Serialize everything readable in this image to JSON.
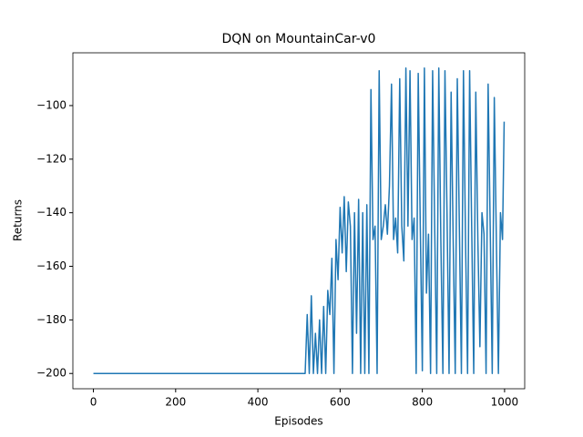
{
  "chart_data": {
    "type": "line",
    "title": "DQN on MountainCar-v0",
    "x_label": "Episodes",
    "y_label": "Returns",
    "xlim": [
      -49.95,
      1048.95
    ],
    "ylim": [
      -205.7,
      -80.3
    ],
    "xticks": [
      0,
      200,
      400,
      600,
      800,
      1000
    ],
    "yticks": [
      {
        "value": -200,
        "label": "−200"
      },
      {
        "value": -180,
        "label": "−180"
      },
      {
        "value": -160,
        "label": "−160"
      },
      {
        "value": -140,
        "label": "−140"
      },
      {
        "value": -120,
        "label": "−120"
      },
      {
        "value": -100,
        "label": "−100"
      }
    ],
    "series": [
      {
        "color": "#1f77b4",
        "x": [
          0,
          515,
          520,
          525,
          530,
          535,
          540,
          545,
          550,
          555,
          560,
          565,
          570,
          575,
          580,
          585,
          590,
          595,
          600,
          605,
          610,
          615,
          620,
          625,
          630,
          635,
          640,
          645,
          650,
          655,
          660,
          665,
          670,
          675,
          680,
          685,
          690,
          695,
          700,
          705,
          710,
          715,
          720,
          725,
          730,
          735,
          740,
          745,
          750,
          755,
          760,
          765,
          770,
          775,
          780,
          785,
          790,
          795,
          800,
          805,
          810,
          815,
          820,
          825,
          830,
          835,
          840,
          845,
          850,
          855,
          860,
          865,
          870,
          875,
          880,
          885,
          890,
          895,
          900,
          905,
          910,
          915,
          920,
          925,
          930,
          935,
          940,
          945,
          950,
          955,
          960,
          965,
          970,
          975,
          980,
          985,
          990,
          995,
          999
        ],
        "values": [
          -200,
          -200,
          -178,
          -200,
          -171,
          -200,
          -185,
          -200,
          -180,
          -200,
          -175,
          -200,
          -169,
          -178,
          -157,
          -200,
          -150,
          -165,
          -138,
          -155,
          -134,
          -162,
          -136,
          -145,
          -200,
          -140,
          -185,
          -135,
          -200,
          -140,
          -200,
          -137,
          -200,
          -94,
          -150,
          -145,
          -200,
          -87,
          -150,
          -145,
          -137,
          -148,
          -130,
          -92,
          -150,
          -142,
          -155,
          -90,
          -145,
          -158,
          -86,
          -145,
          -87,
          -150,
          -142,
          -200,
          -88,
          -145,
          -199,
          -86,
          -170,
          -148,
          -200,
          -87,
          -145,
          -200,
          -86,
          -150,
          -200,
          -87,
          -140,
          -200,
          -95,
          -150,
          -200,
          -90,
          -145,
          -200,
          -87,
          -150,
          -200,
          -87,
          -145,
          -200,
          -95,
          -150,
          -190,
          -140,
          -148,
          -200,
          -92,
          -145,
          -200,
          -97,
          -150,
          -200,
          -140,
          -150,
          -106
        ]
      }
    ]
  }
}
